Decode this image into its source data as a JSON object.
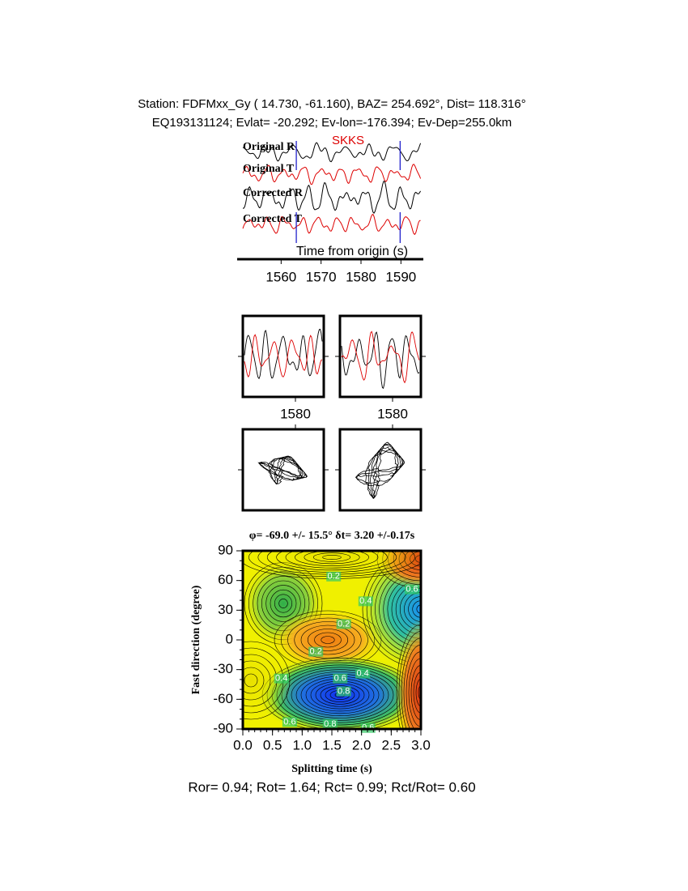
{
  "header": {
    "line1": "Station: FDFMxx_Gy (  14.730,  -61.160), BAZ=  254.692°, Dist=  118.316°",
    "line2": "EQ193131124; Evlat= -20.292; Ev-lon=-176.394; Ev-Dep=255.0km"
  },
  "chart_data": [
    {
      "type": "seismogram",
      "traces": [
        "Original R",
        "Original T",
        "Corrected R",
        "Corrected T"
      ],
      "phase": "SKKS",
      "xlabel": "Time from origin (s)",
      "xlim": [
        1550,
        1595
      ],
      "xticks": [
        1560,
        1570,
        1580,
        1590
      ],
      "window": [
        1563.8,
        1589.8
      ]
    },
    {
      "type": "panel",
      "xlim": [
        1567,
        1587
      ],
      "xticks": [
        1580
      ]
    },
    {
      "type": "panel",
      "xlim": [
        1567,
        1587
      ],
      "xticks": [
        1580
      ]
    },
    {
      "type": "contour",
      "title": "φ= -69.0 +/- 15.5° δt= 3.20 +/-0.17s",
      "xlabel": "Splitting time (s)",
      "ylabel": "Fast direction (degree)",
      "xlim": [
        0,
        3
      ],
      "ylim": [
        -90,
        90
      ],
      "xticks": [
        {
          "value": 0,
          "label": "0.0"
        },
        0.5,
        {
          "value": 1,
          "label": "1.0"
        },
        1.5,
        {
          "value": 2,
          "label": "2.0"
        },
        2.5,
        {
          "value": 3,
          "label": "3.0"
        }
      ],
      "yticks": [
        -90,
        -60,
        -30,
        0,
        30,
        60,
        90
      ],
      "contour_labels": [
        {
          "level": 0.2,
          "x": 1.53,
          "y": 64
        },
        {
          "level": 0.6,
          "x": 2.85,
          "y": 51
        },
        {
          "level": 0.4,
          "x": 2.07,
          "y": 39
        },
        {
          "level": 0.2,
          "x": 1.7,
          "y": 16
        },
        {
          "level": 0.2,
          "x": 1.23,
          "y": -12
        },
        {
          "level": 0.4,
          "x": 0.65,
          "y": -39
        },
        {
          "level": 0.6,
          "x": 1.64,
          "y": -39
        },
        {
          "level": 0.4,
          "x": 2.02,
          "y": -34
        },
        {
          "level": 0.8,
          "x": 1.7,
          "y": -52
        },
        {
          "level": 0.6,
          "x": 0.79,
          "y": -83
        },
        {
          "level": 0.8,
          "x": 1.47,
          "y": -85
        },
        {
          "level": 0.6,
          "x": 2.11,
          "y": -89
        }
      ]
    }
  ],
  "footer": "Ror= 0.94; Rot= 1.64; Rct= 0.99; Rct/Rot= 0.60"
}
